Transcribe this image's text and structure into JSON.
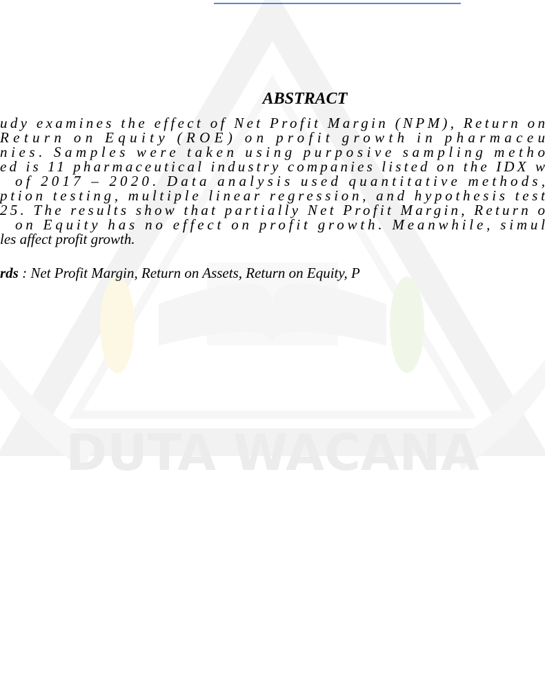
{
  "watermark": {
    "text": "DUTA WACANA"
  },
  "abstract": {
    "heading": "ABSTRACT",
    "lines": [
      "udy examines the effect of Net Profit Margin (NPM), Return on",
      "Return on Equity (ROE) on profit growth in pharmaceu",
      "nies. Samples were taken using purposive sampling metho",
      "ed is 11 pharmaceutical industry companies listed on the IDX w",
      "of 2017 – 2020. Data analysis used quantitative methods,",
      "ption testing, multiple linear regression, and hypothesis test",
      "25. The results show that partially Net Profit Margin, Return o",
      "on Equity has no effect on profit growth. Meanwhile, simul",
      "les affect profit growth."
    ],
    "keywords_label": "rds",
    "keywords": " : Net Profit Margin, Return on Assets, Return on Equity, P"
  }
}
